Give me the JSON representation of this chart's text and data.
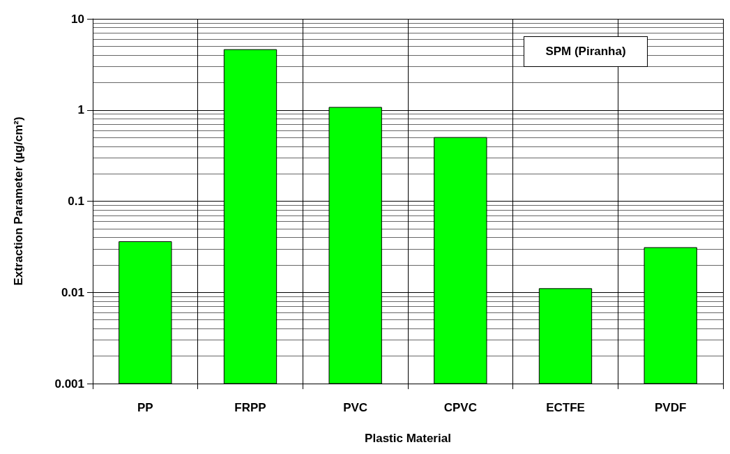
{
  "chart_data": {
    "type": "bar",
    "xlabel": "Plastic Material",
    "ylabel": "Extraction Parameter (µg/cm²)",
    "categories": [
      "PP",
      "FRPP",
      "PVC",
      "CPVC",
      "ECTFE",
      "PVDF"
    ],
    "values": [
      0.036,
      4.6,
      1.07,
      0.5,
      0.011,
      0.031
    ],
    "color": "#00ff00",
    "log": "y",
    "ylim": [
      0.001,
      10
    ],
    "yticks": [
      0.001,
      0.01,
      0.1,
      1,
      10
    ],
    "grid": true,
    "annotations": [
      "SPM (Piranha)"
    ]
  }
}
